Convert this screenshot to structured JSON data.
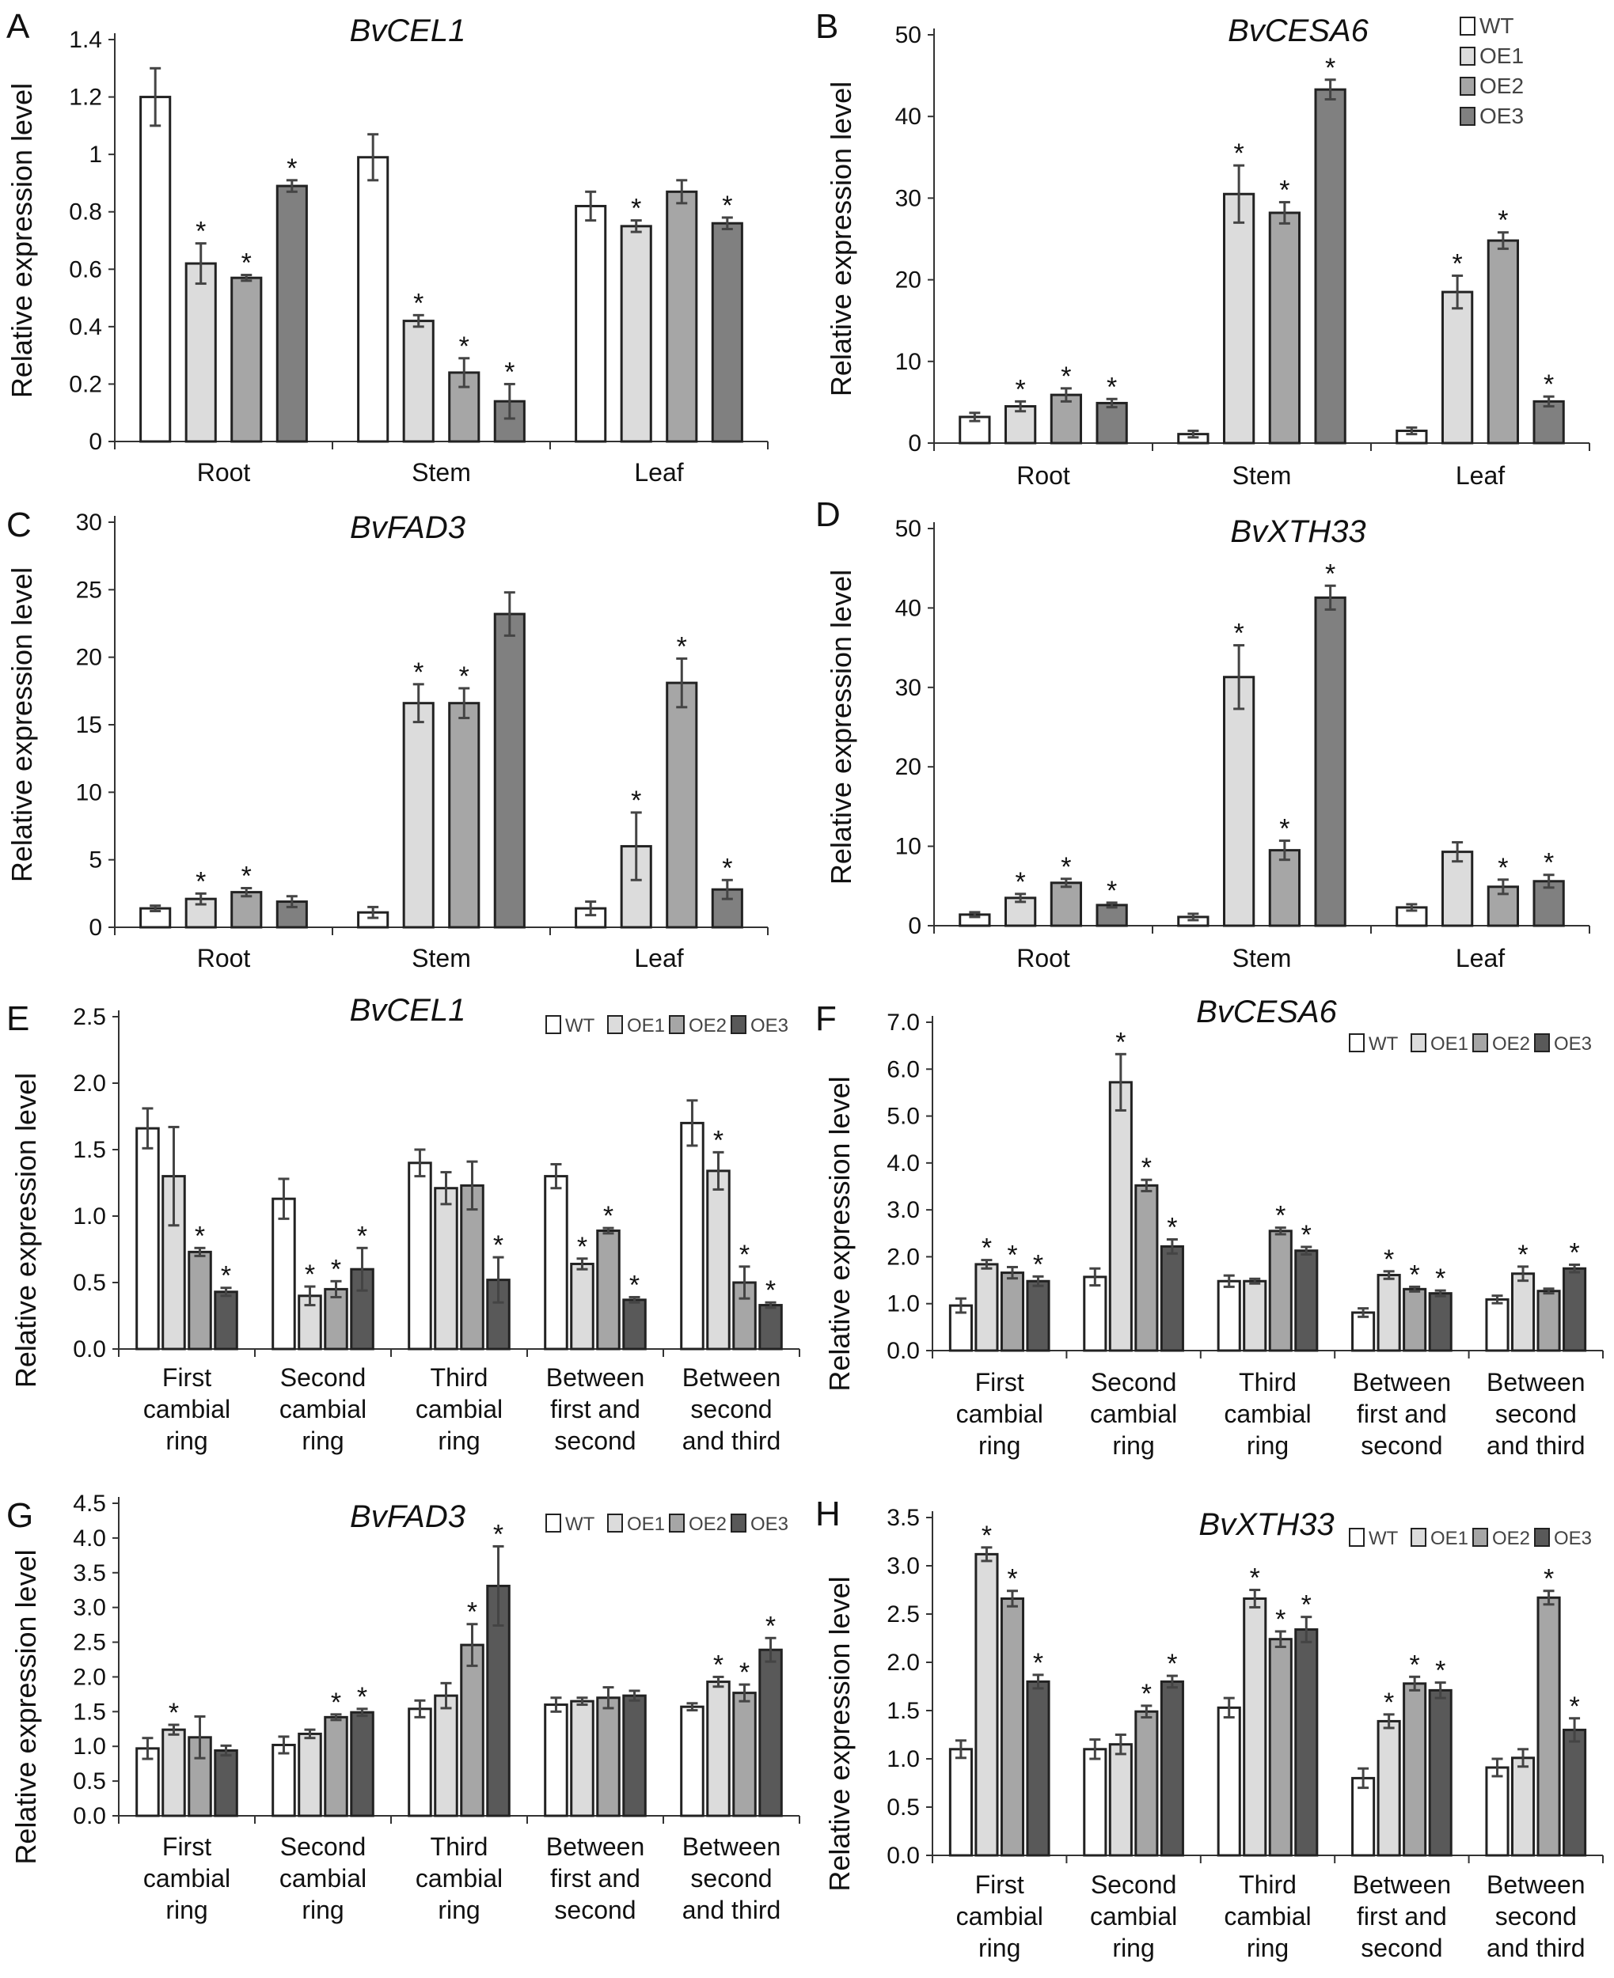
{
  "figure": {
    "ylabel": "Relative expression level"
  },
  "chart_data": [
    {
      "panel": "A",
      "type": "bar",
      "title": "BvCEL1",
      "ylabel": "Relative expression level",
      "yticks": [
        "0",
        "0.2",
        "0.4",
        "0.6",
        "0.8",
        "1",
        "1.2",
        "1.4"
      ],
      "ylim": [
        0,
        1.4
      ],
      "categories": [
        "Root",
        "Stem",
        "Leaf"
      ],
      "series": [
        {
          "name": "WT",
          "values": [
            1.2,
            0.99,
            0.82
          ],
          "errors": [
            0.1,
            0.08,
            0.05
          ],
          "sig": [
            false,
            false,
            false
          ]
        },
        {
          "name": "OE1",
          "values": [
            0.62,
            0.42,
            0.75
          ],
          "errors": [
            0.07,
            0.02,
            0.02
          ],
          "sig": [
            true,
            true,
            true
          ]
        },
        {
          "name": "OE2",
          "values": [
            0.57,
            0.24,
            0.87
          ],
          "errors": [
            0.01,
            0.05,
            0.04
          ],
          "sig": [
            true,
            true,
            false
          ]
        },
        {
          "name": "OE3",
          "values": [
            0.89,
            0.14,
            0.76
          ],
          "errors": [
            0.02,
            0.06,
            0.02
          ],
          "sig": [
            true,
            true,
            true
          ]
        }
      ],
      "legend": null
    },
    {
      "panel": "B",
      "type": "bar",
      "title": "BvCESA6",
      "ylabel": "Relative expression level",
      "yticks": [
        "0",
        "10",
        "20",
        "30",
        "40",
        "50"
      ],
      "ylim": [
        0,
        50
      ],
      "categories": [
        "Root",
        "Stem",
        "Leaf"
      ],
      "series": [
        {
          "name": "WT",
          "values": [
            3.2,
            1.1,
            1.5
          ],
          "errors": [
            0.5,
            0.4,
            0.4
          ],
          "sig": [
            false,
            false,
            false
          ]
        },
        {
          "name": "OE1",
          "values": [
            4.5,
            30.5,
            18.5
          ],
          "errors": [
            0.6,
            3.5,
            2.0
          ],
          "sig": [
            true,
            true,
            true
          ]
        },
        {
          "name": "OE2",
          "values": [
            5.9,
            28.2,
            24.8
          ],
          "errors": [
            0.8,
            1.3,
            1.0
          ],
          "sig": [
            true,
            true,
            true
          ]
        },
        {
          "name": "OE3",
          "values": [
            4.9,
            43.3,
            5.1
          ],
          "errors": [
            0.5,
            1.2,
            0.6
          ],
          "sig": [
            true,
            true,
            true
          ]
        }
      ],
      "legend": {
        "entries": [
          "WT",
          "OE1",
          "OE2",
          "OE3"
        ],
        "placement": "top-right-vertical"
      }
    },
    {
      "panel": "C",
      "type": "bar",
      "title": "BvFAD3",
      "ylabel": "Relative expression level",
      "yticks": [
        "0",
        "5",
        "10",
        "15",
        "20",
        "25",
        "30"
      ],
      "ylim": [
        0,
        30
      ],
      "categories": [
        "Root",
        "Stem",
        "Leaf"
      ],
      "series": [
        {
          "name": "WT",
          "values": [
            1.4,
            1.1,
            1.4
          ],
          "errors": [
            0.2,
            0.4,
            0.5
          ],
          "sig": [
            false,
            false,
            false
          ]
        },
        {
          "name": "OE1",
          "values": [
            2.1,
            16.6,
            6.0
          ],
          "errors": [
            0.4,
            1.4,
            2.5
          ],
          "sig": [
            true,
            true,
            true
          ]
        },
        {
          "name": "OE2",
          "values": [
            2.6,
            16.6,
            18.1
          ],
          "errors": [
            0.3,
            1.1,
            1.8
          ],
          "sig": [
            true,
            true,
            true
          ]
        },
        {
          "name": "OE3",
          "values": [
            1.9,
            23.2,
            2.8
          ],
          "errors": [
            0.4,
            1.6,
            0.7
          ],
          "sig": [
            false,
            false,
            true
          ]
        }
      ],
      "legend": null
    },
    {
      "panel": "D",
      "type": "bar",
      "title": "BvXTH33",
      "ylabel": "Relative expression level",
      "yticks": [
        "0",
        "10",
        "20",
        "30",
        "40",
        "50"
      ],
      "ylim": [
        0,
        50
      ],
      "categories": [
        "Root",
        "Stem",
        "Leaf"
      ],
      "series": [
        {
          "name": "WT",
          "values": [
            1.4,
            1.1,
            2.3
          ],
          "errors": [
            0.3,
            0.4,
            0.4
          ],
          "sig": [
            false,
            false,
            false
          ]
        },
        {
          "name": "OE1",
          "values": [
            3.5,
            31.3,
            9.3
          ],
          "errors": [
            0.5,
            4.0,
            1.2
          ],
          "sig": [
            true,
            true,
            false
          ]
        },
        {
          "name": "OE2",
          "values": [
            5.4,
            9.5,
            4.9
          ],
          "errors": [
            0.5,
            1.2,
            0.9
          ],
          "sig": [
            true,
            true,
            true
          ]
        },
        {
          "name": "OE3",
          "values": [
            2.6,
            41.3,
            5.6
          ],
          "errors": [
            0.3,
            1.5,
            0.8
          ],
          "sig": [
            true,
            true,
            true
          ]
        }
      ],
      "legend": null
    },
    {
      "panel": "E",
      "type": "bar",
      "title": "BvCEL1",
      "ylabel": "Relative expression level",
      "yticks": [
        "0.0",
        "0.5",
        "1.0",
        "1.5",
        "2.0",
        "2.5"
      ],
      "ylim": [
        0,
        2.5
      ],
      "categories": [
        [
          "First",
          "cambial",
          "ring"
        ],
        [
          "Second",
          "cambial",
          "ring"
        ],
        [
          "Third",
          "cambial",
          "ring"
        ],
        [
          "Between",
          "first and",
          "second"
        ],
        [
          "Between",
          "second",
          "and third"
        ]
      ],
      "series": [
        {
          "name": "WT",
          "values": [
            1.66,
            1.13,
            1.4,
            1.3,
            1.7
          ],
          "errors": [
            0.15,
            0.15,
            0.1,
            0.09,
            0.17
          ],
          "sig": [
            false,
            false,
            false,
            false,
            false
          ]
        },
        {
          "name": "OE1",
          "values": [
            1.3,
            0.4,
            1.21,
            0.64,
            1.34
          ],
          "errors": [
            0.37,
            0.07,
            0.12,
            0.04,
            0.14
          ],
          "sig": [
            false,
            true,
            false,
            true,
            true
          ]
        },
        {
          "name": "OE2",
          "values": [
            0.73,
            0.45,
            1.23,
            0.89,
            0.5
          ],
          "errors": [
            0.03,
            0.06,
            0.18,
            0.02,
            0.12
          ],
          "sig": [
            true,
            true,
            false,
            true,
            true
          ]
        },
        {
          "name": "OE3",
          "values": [
            0.43,
            0.6,
            0.52,
            0.37,
            0.33
          ],
          "errors": [
            0.03,
            0.16,
            0.17,
            0.02,
            0.02
          ],
          "sig": [
            true,
            true,
            true,
            true,
            true
          ]
        }
      ],
      "legend": {
        "entries": [
          "WT",
          "OE1",
          "OE2",
          "OE3"
        ],
        "placement": "top-right-horizontal"
      }
    },
    {
      "panel": "F",
      "type": "bar",
      "title": "BvCESA6",
      "ylabel": "Relative expression level",
      "yticks": [
        "0.0",
        "1.0",
        "2.0",
        "3.0",
        "4.0",
        "5.0",
        "6.0",
        "7.0"
      ],
      "ylim": [
        0,
        7
      ],
      "categories": [
        [
          "First",
          "cambial",
          "ring"
        ],
        [
          "Second",
          "cambial",
          "ring"
        ],
        [
          "Third",
          "cambial",
          "ring"
        ],
        [
          "Between",
          "first and",
          "second"
        ],
        [
          "Between",
          "second",
          "and third"
        ]
      ],
      "series": [
        {
          "name": "WT",
          "values": [
            0.96,
            1.57,
            1.48,
            0.81,
            1.09
          ],
          "errors": [
            0.15,
            0.18,
            0.12,
            0.09,
            0.08
          ],
          "sig": [
            false,
            false,
            false,
            false,
            false
          ]
        },
        {
          "name": "OE1",
          "values": [
            1.84,
            5.72,
            1.48,
            1.61,
            1.64
          ],
          "errors": [
            0.09,
            0.6,
            0.05,
            0.08,
            0.15
          ],
          "sig": [
            true,
            true,
            false,
            true,
            true
          ]
        },
        {
          "name": "OE2",
          "values": [
            1.66,
            3.52,
            2.55,
            1.31,
            1.27
          ],
          "errors": [
            0.12,
            0.12,
            0.07,
            0.05,
            0.05
          ],
          "sig": [
            true,
            true,
            true,
            true,
            false
          ]
        },
        {
          "name": "OE3",
          "values": [
            1.48,
            2.22,
            2.13,
            1.22,
            1.75
          ],
          "errors": [
            0.1,
            0.15,
            0.08,
            0.06,
            0.08
          ],
          "sig": [
            true,
            true,
            true,
            true,
            true
          ]
        }
      ],
      "legend": {
        "entries": [
          "WT",
          "OE1",
          "OE2",
          "OE3"
        ],
        "placement": "top-right-horizontal"
      }
    },
    {
      "panel": "G",
      "type": "bar",
      "title": "BvFAD3",
      "ylabel": "Relative expression level",
      "yticks": [
        "0.0",
        "0.5",
        "1.0",
        "1.5",
        "2.0",
        "2.5",
        "3.0",
        "3.5",
        "4.0",
        "4.5"
      ],
      "ylim": [
        0,
        4.5
      ],
      "categories": [
        [
          "First",
          "cambial",
          "ring"
        ],
        [
          "Second",
          "cambial",
          "ring"
        ],
        [
          "Third",
          "cambial",
          "ring"
        ],
        [
          "Between",
          "first and",
          "second"
        ],
        [
          "Between",
          "second",
          "and third"
        ]
      ],
      "series": [
        {
          "name": "WT",
          "values": [
            0.97,
            1.02,
            1.54,
            1.6,
            1.57
          ],
          "errors": [
            0.15,
            0.12,
            0.12,
            0.1,
            0.05
          ],
          "sig": [
            false,
            false,
            false,
            false,
            false
          ]
        },
        {
          "name": "OE1",
          "values": [
            1.24,
            1.18,
            1.73,
            1.65,
            1.93
          ],
          "errors": [
            0.07,
            0.06,
            0.18,
            0.05,
            0.07
          ],
          "sig": [
            true,
            false,
            false,
            false,
            true
          ]
        },
        {
          "name": "OE2",
          "values": [
            1.13,
            1.42,
            2.46,
            1.7,
            1.77
          ],
          "errors": [
            0.3,
            0.04,
            0.3,
            0.15,
            0.12
          ],
          "sig": [
            false,
            true,
            true,
            false,
            true
          ]
        },
        {
          "name": "OE3",
          "values": [
            0.94,
            1.49,
            3.31,
            1.73,
            2.39
          ],
          "errors": [
            0.07,
            0.05,
            0.57,
            0.07,
            0.17
          ],
          "sig": [
            false,
            true,
            true,
            false,
            true
          ]
        }
      ],
      "legend": {
        "entries": [
          "WT",
          "OE1",
          "OE2",
          "OE3"
        ],
        "placement": "top-right-horizontal"
      }
    },
    {
      "panel": "H",
      "type": "bar",
      "title": "BvXTH33",
      "ylabel": "Relative expression level",
      "yticks": [
        "0.0",
        "0.5",
        "1.0",
        "1.5",
        "2.0",
        "2.5",
        "3.0",
        "3.5"
      ],
      "ylim": [
        0,
        3.5
      ],
      "categories": [
        [
          "First",
          "cambial",
          "ring"
        ],
        [
          "Second",
          "cambial",
          "ring"
        ],
        [
          "Third",
          "cambial",
          "ring"
        ],
        [
          "Between",
          "first and",
          "second"
        ],
        [
          "Between",
          "second",
          "and third"
        ]
      ],
      "series": [
        {
          "name": "WT",
          "values": [
            1.1,
            1.1,
            1.53,
            0.8,
            0.91
          ],
          "errors": [
            0.09,
            0.1,
            0.1,
            0.1,
            0.09
          ],
          "sig": [
            false,
            false,
            false,
            false,
            false
          ]
        },
        {
          "name": "OE1",
          "values": [
            3.12,
            1.15,
            2.66,
            1.39,
            1.01
          ],
          "errors": [
            0.07,
            0.1,
            0.09,
            0.07,
            0.09
          ],
          "sig": [
            true,
            false,
            true,
            true,
            false
          ]
        },
        {
          "name": "OE2",
          "values": [
            2.66,
            1.49,
            2.24,
            1.78,
            2.67
          ],
          "errors": [
            0.08,
            0.06,
            0.08,
            0.07,
            0.07
          ],
          "sig": [
            true,
            true,
            true,
            true,
            true
          ]
        },
        {
          "name": "OE3",
          "values": [
            1.8,
            1.8,
            2.34,
            1.71,
            1.3
          ],
          "errors": [
            0.07,
            0.06,
            0.13,
            0.08,
            0.12
          ],
          "sig": [
            true,
            true,
            true,
            true,
            true
          ]
        }
      ],
      "legend": {
        "entries": [
          "WT",
          "OE1",
          "OE2",
          "OE3"
        ],
        "placement": "top-right-horizontal"
      }
    }
  ],
  "colors": {
    "WT": "#ffffff",
    "OE1": "#dcdcdc",
    "OE2": "#a6a6a6",
    "OE3": "#808080",
    "OE3_lower": "#595959"
  },
  "significance_marker": "*"
}
